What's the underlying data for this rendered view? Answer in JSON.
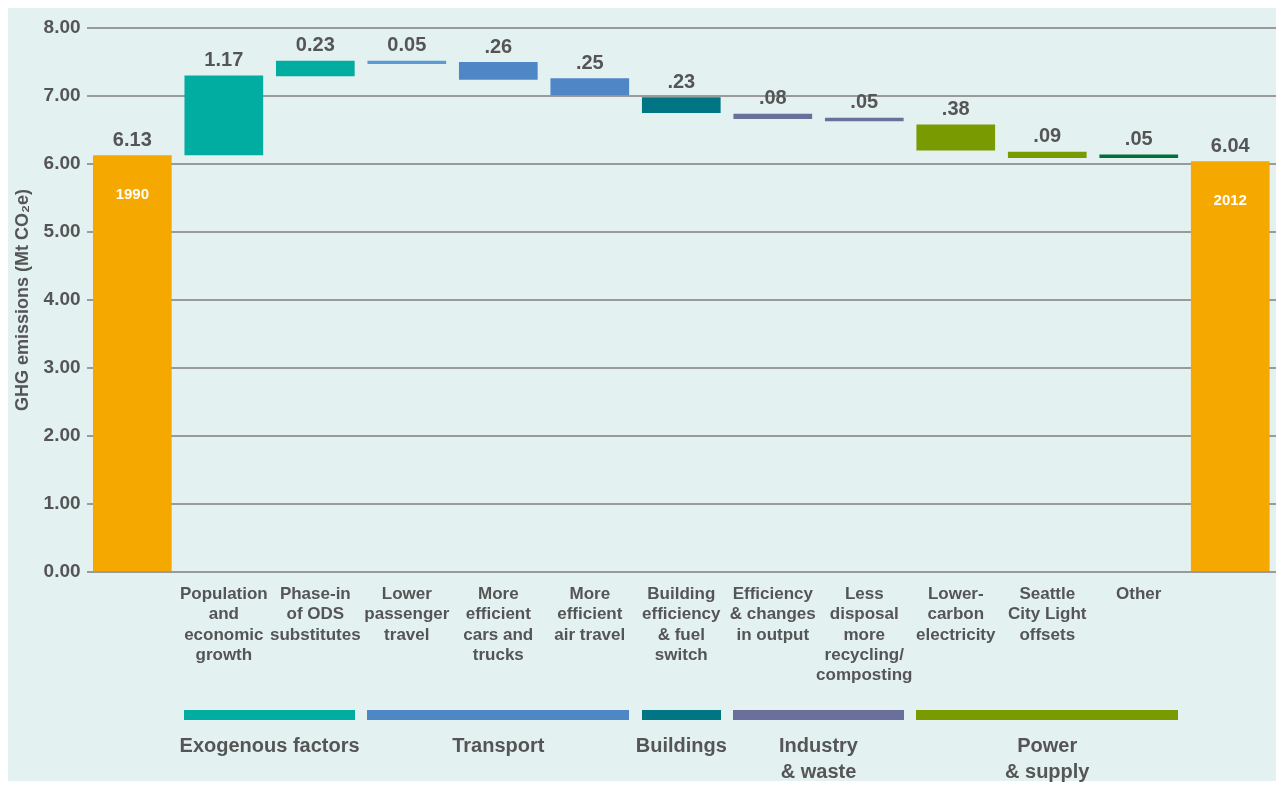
{
  "chart_data": {
    "type": "bar",
    "ylabel": "GHG emissions (Mt CO₂e)",
    "categories": [
      "1990",
      "Population and economic growth",
      "Phase-in of ODS substitutes",
      "Lower passenger travel",
      "More efficient cars and trucks",
      "More efficient air travel",
      "Building efficiency & fuel switch",
      "Efficiency & changes in output",
      "Less disposal more recycling/ composting",
      "Lower-carbon electricity",
      "Seattle City Light offsets",
      "Other",
      "2012"
    ],
    "values": [
      6.13,
      1.17,
      0.23,
      -0.05,
      -0.26,
      -0.25,
      -0.23,
      -0.08,
      -0.05,
      -0.38,
      -0.09,
      -0.05,
      6.04
    ],
    "base": [
      0,
      6.13,
      7.29,
      7.52,
      7.5,
      7.26,
      6.98,
      6.74,
      6.68,
      6.58,
      6.18,
      6.14,
      0
    ],
    "colors": [
      "#f5a800",
      "#00ada0",
      "#00ada0",
      "#5b9bd5",
      "#4f86c6",
      "#4f86c6",
      "#007685",
      "#6b6f9c",
      "#6b6f9c",
      "#7a9a01",
      "#7a9a01",
      "#00703c",
      "#f5a800"
    ],
    "value_labels": [
      "6.13",
      "1.17",
      "0.23",
      "0.05",
      ".26",
      ".25",
      ".23",
      ".08",
      ".05",
      ".38",
      ".09",
      ".05",
      "6.04"
    ],
    "ylim": [
      0,
      8
    ],
    "yticks": [
      {
        "value": 0,
        "label": "0.00"
      },
      {
        "value": 1,
        "label": "1.00"
      },
      {
        "value": 2,
        "label": "2.00"
      },
      {
        "value": 3,
        "label": "3.00"
      },
      {
        "value": 4,
        "label": "4.00"
      },
      {
        "value": 5,
        "label": "5.00"
      },
      {
        "value": 6,
        "label": "6.00"
      },
      {
        "value": 7,
        "label": "7.00"
      },
      {
        "value": 8,
        "label": "8.00"
      }
    ],
    "grid": "y",
    "legend": false,
    "annotations": [
      "Exogenous factors",
      "Transport",
      "Buildings",
      "Industry & waste",
      "Power & supply"
    ]
  }
}
